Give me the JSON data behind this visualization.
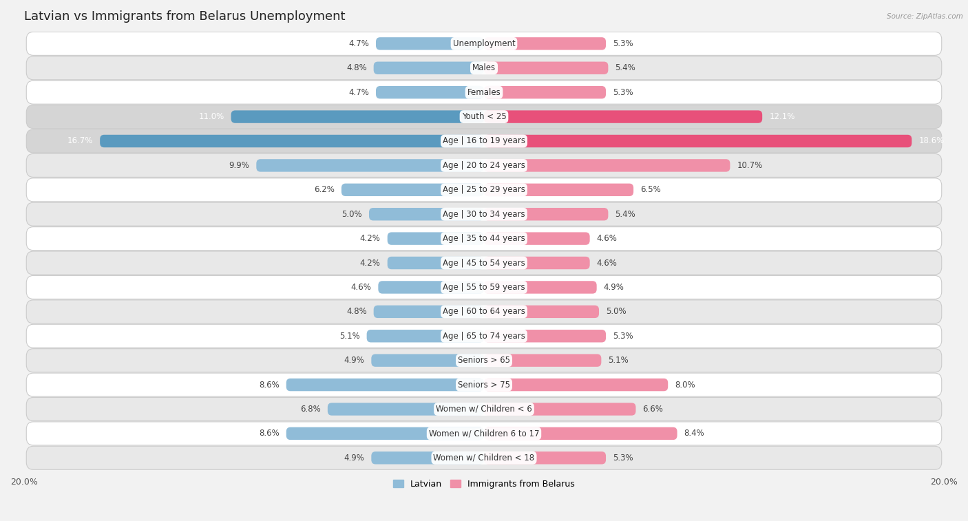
{
  "title": "Latvian vs Immigrants from Belarus Unemployment",
  "source": "Source: ZipAtlas.com",
  "categories": [
    "Unemployment",
    "Males",
    "Females",
    "Youth < 25",
    "Age | 16 to 19 years",
    "Age | 20 to 24 years",
    "Age | 25 to 29 years",
    "Age | 30 to 34 years",
    "Age | 35 to 44 years",
    "Age | 45 to 54 years",
    "Age | 55 to 59 years",
    "Age | 60 to 64 years",
    "Age | 65 to 74 years",
    "Seniors > 65",
    "Seniors > 75",
    "Women w/ Children < 6",
    "Women w/ Children 6 to 17",
    "Women w/ Children < 18"
  ],
  "latvian_values": [
    4.7,
    4.8,
    4.7,
    11.0,
    16.7,
    9.9,
    6.2,
    5.0,
    4.2,
    4.2,
    4.6,
    4.8,
    5.1,
    4.9,
    8.6,
    6.8,
    8.6,
    4.9
  ],
  "immigrants_values": [
    5.3,
    5.4,
    5.3,
    12.1,
    18.6,
    10.7,
    6.5,
    5.4,
    4.6,
    4.6,
    4.9,
    5.0,
    5.3,
    5.1,
    8.0,
    6.6,
    8.4,
    5.3
  ],
  "latvian_color": "#90bcd8",
  "immigrants_color": "#f090a8",
  "latvian_color_bright": "#5a9abf",
  "immigrants_color_bright": "#e8507a",
  "latvian_label": "Latvian",
  "immigrants_label": "Immigrants from Belarus",
  "bg_color": "#f2f2f2",
  "row_color_light": "#ffffff",
  "row_color_alt": "#e8e8e8",
  "row_color_highlight": "#d5d5d5",
  "axis_limit": 20.0,
  "highlight_rows": [
    3,
    4
  ],
  "label_fontsize": 8.5,
  "value_fontsize": 8.5,
  "title_fontsize": 13
}
